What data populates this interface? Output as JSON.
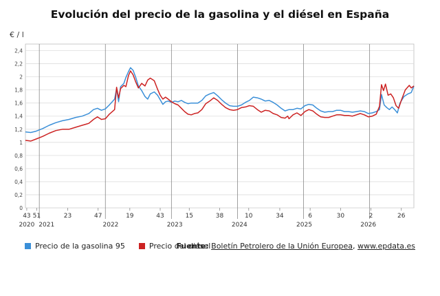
{
  "title": "Evolución del precio de la gasolina y el diésel en España",
  "unit_label": "€ / l",
  "legend": [
    {
      "label": "Precio de la gasolina 95",
      "color": "#3a8fd8"
    },
    {
      "label": "Precio del diésel",
      "color": "#cc2222"
    }
  ],
  "source": {
    "prefix": "Fuente:",
    "name": "Boletín Petrolero de la Unión Europea",
    "separator": ", ",
    "url": "www.epdata.es"
  },
  "chart_data": {
    "type": "line",
    "title": "Evolución del precio de la gasolina y el diésel en España",
    "ylabel": "€ / l",
    "ylim": [
      0,
      2.5
    ],
    "yticks": [
      0,
      0.2,
      0.4,
      0.6,
      0.8,
      1,
      1.2,
      1.4,
      1.6,
      1.8,
      2,
      2.2,
      2.4
    ],
    "ytick_labels": [
      "0",
      "0,2",
      "0,4",
      "0,6",
      "0,8",
      "1",
      "1,2",
      "1,4",
      "1,6",
      "1,8",
      "2",
      "2,2",
      "2,4"
    ],
    "grid": true,
    "xlim": [
      2020.79,
      2026.67
    ],
    "x_ticks": [
      {
        "x": 2020.81,
        "label": "43"
      },
      {
        "x": 2020.96,
        "label": "51"
      },
      {
        "x": 2021.43,
        "label": "23"
      },
      {
        "x": 2021.89,
        "label": "47"
      },
      {
        "x": 2022.37,
        "label": "19"
      },
      {
        "x": 2022.83,
        "label": "43"
      },
      {
        "x": 2023.27,
        "label": "15"
      },
      {
        "x": 2023.73,
        "label": "38"
      },
      {
        "x": 2024.17,
        "label": "10"
      },
      {
        "x": 2024.64,
        "label": "34"
      },
      {
        "x": 2025.1,
        "label": "6"
      },
      {
        "x": 2025.56,
        "label": "30"
      },
      {
        "x": 2026.02,
        "label": "2"
      },
      {
        "x": 2026.48,
        "label": "26"
      }
    ],
    "year_ticks": [
      {
        "x": 2020.81,
        "label": "2020"
      },
      {
        "x": 2021.11,
        "label": "2021"
      },
      {
        "x": 2022.08,
        "label": "2022"
      },
      {
        "x": 2023.05,
        "label": "2023"
      },
      {
        "x": 2024.03,
        "label": "2024"
      },
      {
        "x": 2025.01,
        "label": "2025"
      },
      {
        "x": 2025.98,
        "label": "2026"
      }
    ],
    "year_separators": [
      2021.0,
      2022.0,
      2023.0,
      2024.0,
      2025.0,
      2026.0
    ],
    "series": [
      {
        "name": "Precio de la gasolina 95",
        "color": "#3a8fd8",
        "points": [
          [
            2020.79,
            1.16
          ],
          [
            2020.87,
            1.15
          ],
          [
            2020.95,
            1.17
          ],
          [
            2021.05,
            1.21
          ],
          [
            2021.15,
            1.26
          ],
          [
            2021.25,
            1.3
          ],
          [
            2021.35,
            1.33
          ],
          [
            2021.45,
            1.35
          ],
          [
            2021.55,
            1.38
          ],
          [
            2021.65,
            1.4
          ],
          [
            2021.75,
            1.44
          ],
          [
            2021.82,
            1.5
          ],
          [
            2021.88,
            1.52
          ],
          [
            2021.94,
            1.49
          ],
          [
            2022.0,
            1.51
          ],
          [
            2022.06,
            1.57
          ],
          [
            2022.14,
            1.66
          ],
          [
            2022.17,
            1.82
          ],
          [
            2022.2,
            1.62
          ],
          [
            2022.23,
            1.85
          ],
          [
            2022.28,
            1.9
          ],
          [
            2022.31,
            1.99
          ],
          [
            2022.35,
            2.08
          ],
          [
            2022.38,
            2.14
          ],
          [
            2022.42,
            2.1
          ],
          [
            2022.46,
            1.99
          ],
          [
            2022.5,
            1.86
          ],
          [
            2022.55,
            1.79
          ],
          [
            2022.6,
            1.7
          ],
          [
            2022.64,
            1.66
          ],
          [
            2022.68,
            1.74
          ],
          [
            2022.74,
            1.77
          ],
          [
            2022.79,
            1.72
          ],
          [
            2022.83,
            1.65
          ],
          [
            2022.87,
            1.58
          ],
          [
            2022.91,
            1.62
          ],
          [
            2022.95,
            1.63
          ],
          [
            2023.0,
            1.61
          ],
          [
            2023.05,
            1.63
          ],
          [
            2023.1,
            1.62
          ],
          [
            2023.15,
            1.64
          ],
          [
            2023.2,
            1.61
          ],
          [
            2023.25,
            1.59
          ],
          [
            2023.3,
            1.6
          ],
          [
            2023.35,
            1.6
          ],
          [
            2023.4,
            1.6
          ],
          [
            2023.46,
            1.64
          ],
          [
            2023.52,
            1.71
          ],
          [
            2023.58,
            1.74
          ],
          [
            2023.64,
            1.76
          ],
          [
            2023.7,
            1.71
          ],
          [
            2023.76,
            1.65
          ],
          [
            2023.82,
            1.6
          ],
          [
            2023.88,
            1.56
          ],
          [
            2023.94,
            1.55
          ],
          [
            2024.0,
            1.55
          ],
          [
            2024.06,
            1.57
          ],
          [
            2024.12,
            1.61
          ],
          [
            2024.18,
            1.64
          ],
          [
            2024.24,
            1.69
          ],
          [
            2024.3,
            1.68
          ],
          [
            2024.36,
            1.66
          ],
          [
            2024.42,
            1.63
          ],
          [
            2024.48,
            1.64
          ],
          [
            2024.54,
            1.61
          ],
          [
            2024.6,
            1.57
          ],
          [
            2024.66,
            1.52
          ],
          [
            2024.72,
            1.48
          ],
          [
            2024.78,
            1.5
          ],
          [
            2024.84,
            1.5
          ],
          [
            2024.9,
            1.52
          ],
          [
            2024.96,
            1.51
          ],
          [
            2025.02,
            1.56
          ],
          [
            2025.08,
            1.58
          ],
          [
            2025.14,
            1.57
          ],
          [
            2025.2,
            1.52
          ],
          [
            2025.26,
            1.48
          ],
          [
            2025.32,
            1.46
          ],
          [
            2025.38,
            1.47
          ],
          [
            2025.44,
            1.47
          ],
          [
            2025.5,
            1.49
          ],
          [
            2025.56,
            1.49
          ],
          [
            2025.62,
            1.47
          ],
          [
            2025.68,
            1.47
          ],
          [
            2025.74,
            1.46
          ],
          [
            2025.8,
            1.47
          ],
          [
            2025.86,
            1.48
          ],
          [
            2025.92,
            1.47
          ],
          [
            2025.98,
            1.44
          ],
          [
            2026.04,
            1.45
          ],
          [
            2026.1,
            1.47
          ],
          [
            2026.15,
            1.5
          ],
          [
            2026.18,
            1.73
          ],
          [
            2026.22,
            1.57
          ],
          [
            2026.26,
            1.53
          ],
          [
            2026.3,
            1.5
          ],
          [
            2026.34,
            1.54
          ],
          [
            2026.38,
            1.5
          ],
          [
            2026.42,
            1.45
          ],
          [
            2026.46,
            1.6
          ],
          [
            2026.52,
            1.7
          ],
          [
            2026.58,
            1.74
          ],
          [
            2026.63,
            1.76
          ],
          [
            2026.67,
            1.86
          ]
        ]
      },
      {
        "name": "Precio del diésel",
        "color": "#cc2222",
        "points": [
          [
            2020.79,
            1.03
          ],
          [
            2020.87,
            1.02
          ],
          [
            2020.95,
            1.05
          ],
          [
            2021.05,
            1.09
          ],
          [
            2021.15,
            1.14
          ],
          [
            2021.25,
            1.18
          ],
          [
            2021.35,
            1.2
          ],
          [
            2021.45,
            1.2
          ],
          [
            2021.55,
            1.23
          ],
          [
            2021.65,
            1.26
          ],
          [
            2021.75,
            1.29
          ],
          [
            2021.82,
            1.35
          ],
          [
            2021.88,
            1.39
          ],
          [
            2021.94,
            1.35
          ],
          [
            2022.0,
            1.36
          ],
          [
            2022.06,
            1.43
          ],
          [
            2022.14,
            1.5
          ],
          [
            2022.17,
            1.84
          ],
          [
            2022.2,
            1.68
          ],
          [
            2022.23,
            1.82
          ],
          [
            2022.28,
            1.87
          ],
          [
            2022.31,
            1.85
          ],
          [
            2022.35,
            2.02
          ],
          [
            2022.38,
            2.09
          ],
          [
            2022.42,
            2.03
          ],
          [
            2022.46,
            1.92
          ],
          [
            2022.5,
            1.83
          ],
          [
            2022.55,
            1.9
          ],
          [
            2022.6,
            1.86
          ],
          [
            2022.64,
            1.95
          ],
          [
            2022.68,
            1.98
          ],
          [
            2022.74,
            1.94
          ],
          [
            2022.79,
            1.81
          ],
          [
            2022.83,
            1.72
          ],
          [
            2022.87,
            1.66
          ],
          [
            2022.91,
            1.69
          ],
          [
            2022.95,
            1.66
          ],
          [
            2023.0,
            1.62
          ],
          [
            2023.05,
            1.59
          ],
          [
            2023.1,
            1.57
          ],
          [
            2023.15,
            1.52
          ],
          [
            2023.2,
            1.47
          ],
          [
            2023.25,
            1.43
          ],
          [
            2023.3,
            1.42
          ],
          [
            2023.35,
            1.44
          ],
          [
            2023.4,
            1.45
          ],
          [
            2023.46,
            1.5
          ],
          [
            2023.52,
            1.59
          ],
          [
            2023.58,
            1.63
          ],
          [
            2023.64,
            1.68
          ],
          [
            2023.7,
            1.64
          ],
          [
            2023.76,
            1.58
          ],
          [
            2023.82,
            1.53
          ],
          [
            2023.88,
            1.5
          ],
          [
            2023.94,
            1.49
          ],
          [
            2024.0,
            1.5
          ],
          [
            2024.06,
            1.53
          ],
          [
            2024.12,
            1.54
          ],
          [
            2024.18,
            1.56
          ],
          [
            2024.24,
            1.55
          ],
          [
            2024.3,
            1.5
          ],
          [
            2024.36,
            1.46
          ],
          [
            2024.42,
            1.49
          ],
          [
            2024.48,
            1.48
          ],
          [
            2024.54,
            1.44
          ],
          [
            2024.6,
            1.42
          ],
          [
            2024.66,
            1.38
          ],
          [
            2024.72,
            1.37
          ],
          [
            2024.76,
            1.4
          ],
          [
            2024.78,
            1.36
          ],
          [
            2024.84,
            1.42
          ],
          [
            2024.9,
            1.45
          ],
          [
            2024.96,
            1.41
          ],
          [
            2025.02,
            1.47
          ],
          [
            2025.08,
            1.5
          ],
          [
            2025.14,
            1.48
          ],
          [
            2025.2,
            1.43
          ],
          [
            2025.26,
            1.39
          ],
          [
            2025.32,
            1.38
          ],
          [
            2025.38,
            1.38
          ],
          [
            2025.44,
            1.4
          ],
          [
            2025.5,
            1.42
          ],
          [
            2025.56,
            1.42
          ],
          [
            2025.62,
            1.41
          ],
          [
            2025.68,
            1.41
          ],
          [
            2025.74,
            1.4
          ],
          [
            2025.8,
            1.42
          ],
          [
            2025.86,
            1.44
          ],
          [
            2025.92,
            1.42
          ],
          [
            2025.98,
            1.39
          ],
          [
            2026.04,
            1.4
          ],
          [
            2026.1,
            1.43
          ],
          [
            2026.15,
            1.55
          ],
          [
            2026.18,
            1.88
          ],
          [
            2026.21,
            1.79
          ],
          [
            2026.24,
            1.89
          ],
          [
            2026.28,
            1.72
          ],
          [
            2026.32,
            1.74
          ],
          [
            2026.36,
            1.68
          ],
          [
            2026.4,
            1.56
          ],
          [
            2026.44,
            1.52
          ],
          [
            2026.48,
            1.64
          ],
          [
            2026.54,
            1.8
          ],
          [
            2026.6,
            1.87
          ],
          [
            2026.63,
            1.83
          ],
          [
            2026.67,
            1.86
          ]
        ]
      }
    ]
  }
}
